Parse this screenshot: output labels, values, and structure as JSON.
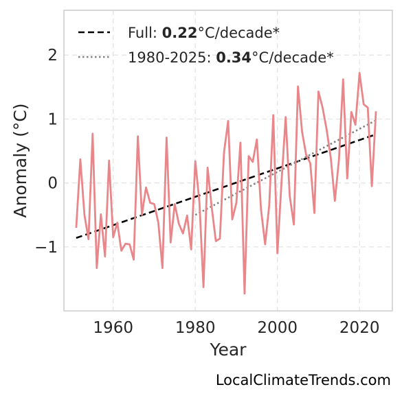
{
  "chart_data": {
    "type": "line",
    "xlabel": "Year",
    "ylabel": "Anomaly (°C)",
    "xlim": [
      1948,
      2028
    ],
    "ylim": [
      -2.0,
      2.7
    ],
    "x_ticks": [
      1960,
      1980,
      2000,
      2020
    ],
    "x_tick_labels": [
      "1960",
      "1980",
      "2000",
      "2020"
    ],
    "y_ticks": [
      2,
      1,
      0,
      -1
    ],
    "y_tick_labels": [
      "2",
      "1",
      "0",
      "−1"
    ],
    "grid": true,
    "legend_position": "top-left",
    "colors": {
      "series": "#e8868a",
      "full_trend": "#000000",
      "recent_trend": "#808080",
      "grid": "#e2e2e2",
      "frame": "#cccccc"
    },
    "series": [
      {
        "x": [
          1951,
          1952,
          1953,
          1954,
          1955,
          1956,
          1957,
          1958,
          1959,
          1960,
          1961,
          1962,
          1963,
          1964,
          1965,
          1966,
          1967,
          1968,
          1969,
          1970,
          1971,
          1972,
          1973,
          1974,
          1975,
          1976,
          1977,
          1978,
          1979,
          1980,
          1981,
          1982,
          1983,
          1984,
          1985,
          1986,
          1987,
          1988,
          1989,
          1990,
          1991,
          1992,
          1993,
          1994,
          1995,
          1996,
          1997,
          1998,
          1999,
          2000,
          2001,
          2002,
          2003,
          2004,
          2005,
          2006,
          2007,
          2008,
          2009,
          2010,
          2011,
          2012,
          2013,
          2014,
          2015,
          2016,
          2017,
          2018,
          2019,
          2020,
          2021,
          2022,
          2023,
          2024
        ],
        "values": [
          -0.7,
          0.37,
          -0.5,
          -0.88,
          0.77,
          -1.33,
          -0.49,
          -1.15,
          0.35,
          -0.85,
          -0.62,
          -1.06,
          -0.95,
          -0.96,
          -1.2,
          0.73,
          -0.5,
          -0.07,
          -0.31,
          -0.33,
          -0.62,
          -1.33,
          0.71,
          -0.93,
          -0.33,
          -0.64,
          -0.79,
          -0.51,
          -1.04,
          0.34,
          -0.3,
          -1.63,
          0.24,
          -0.38,
          -0.91,
          -0.87,
          0.48,
          0.97,
          -0.57,
          -0.31,
          0.63,
          -1.73,
          0.42,
          0.33,
          0.68,
          -0.41,
          -0.96,
          -0.35,
          1.06,
          -1.1,
          0.02,
          1.03,
          -0.2,
          -0.65,
          1.51,
          0.8,
          0.44,
          0.31,
          -0.47,
          1.43,
          1.18,
          0.83,
          0.39,
          -0.28,
          0.37,
          1.62,
          0.07,
          1.11,
          0.91,
          1.72,
          1.23,
          1.18,
          -0.05,
          1.12
        ]
      }
    ],
    "trend_lines": [
      {
        "kind": "full",
        "x": [
          1951,
          2024
        ],
        "y": [
          -0.86,
          0.76
        ]
      },
      {
        "kind": "recent",
        "x": [
          1980,
          2024
        ],
        "y": [
          -0.5,
          0.98
        ]
      }
    ],
    "legend": [
      {
        "prefix": "Full: ",
        "value": "0.22",
        "suffix": "°C/decade*"
      },
      {
        "prefix": "1980-2025: ",
        "value": "0.34",
        "suffix": "°C/decade*"
      }
    ]
  },
  "watermark": "LocalClimateTrends.com"
}
